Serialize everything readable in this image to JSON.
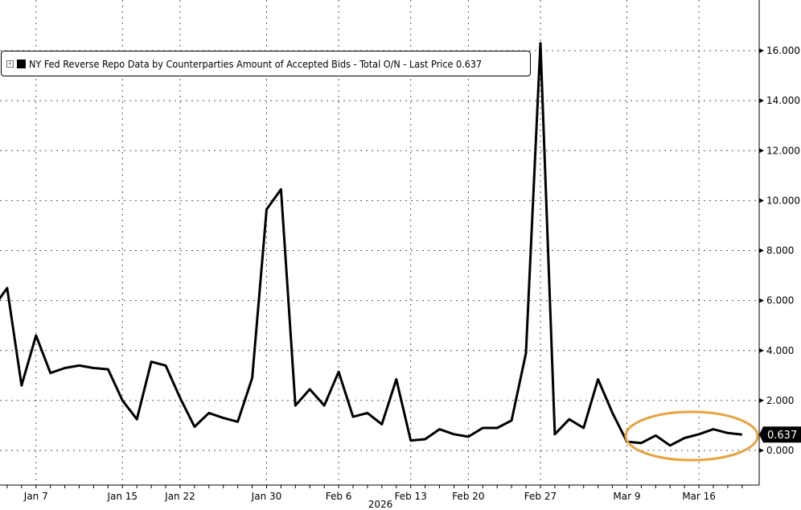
{
  "chart_data": {
    "type": "line",
    "title": "",
    "legend": {
      "placement": "top-left",
      "label": "NY Fed Reverse Repo Data by Counterparties Amount of Accepted Bids - Total O/N - Last Price 0.637"
    },
    "xlabel": "2026",
    "ylabel": "",
    "ylim": [
      -1.2,
      17.8
    ],
    "yticks": [
      "0.000",
      "2.000",
      "4.000",
      "6.000",
      "8.000",
      "10.000",
      "12.000",
      "14.000",
      "16.000"
    ],
    "xtick_labels": [
      "Jan 7",
      "Jan 15",
      "Jan 22",
      "Jan 30",
      "Feb 6",
      "Feb 13",
      "Feb 20",
      "Feb 27",
      "Mar 9",
      "Mar 16"
    ],
    "grid": true,
    "y_axis_side": "right",
    "last_price": "0.637",
    "line_color": "#000000",
    "highlight_color": "#E8A33D",
    "x": [
      "Jan 2",
      "Jan 5",
      "Jan 6",
      "Jan 7",
      "Jan 8",
      "Jan 9",
      "Jan 12",
      "Jan 13",
      "Jan 14",
      "Jan 15",
      "Jan 16",
      "Jan 20",
      "Jan 21",
      "Jan 22",
      "Jan 23",
      "Jan 26",
      "Jan 27",
      "Jan 28",
      "Jan 29",
      "Jan 30",
      "Feb 2",
      "Feb 3",
      "Feb 4",
      "Feb 5",
      "Feb 6",
      "Feb 9",
      "Feb 10",
      "Feb 11",
      "Feb 12",
      "Feb 13",
      "Feb 17",
      "Feb 18",
      "Feb 19",
      "Feb 20",
      "Feb 23",
      "Feb 24",
      "Feb 25",
      "Feb 26",
      "Feb 27",
      "Mar 2",
      "Mar 3",
      "Mar 4",
      "Mar 5",
      "Mar 6",
      "Mar 9",
      "Mar 10",
      "Mar 11",
      "Mar 12",
      "Mar 13",
      "Mar 16",
      "Mar 17",
      "Mar 18",
      "Mar 19"
    ],
    "values": [
      5.7,
      6.5,
      2.6,
      4.6,
      3.1,
      3.3,
      3.4,
      3.3,
      3.25,
      2.0,
      1.25,
      3.55,
      3.4,
      2.1,
      0.95,
      1.5,
      1.3,
      1.15,
      2.9,
      9.65,
      10.45,
      1.8,
      2.45,
      1.8,
      3.15,
      1.35,
      1.5,
      1.05,
      2.85,
      0.4,
      0.45,
      0.85,
      0.65,
      0.55,
      0.9,
      0.9,
      1.2,
      3.9,
      16.3,
      0.65,
      1.25,
      0.9,
      2.85,
      1.5,
      0.35,
      0.3,
      0.6,
      0.2,
      0.5,
      0.65,
      0.85,
      0.7,
      0.637
    ]
  }
}
